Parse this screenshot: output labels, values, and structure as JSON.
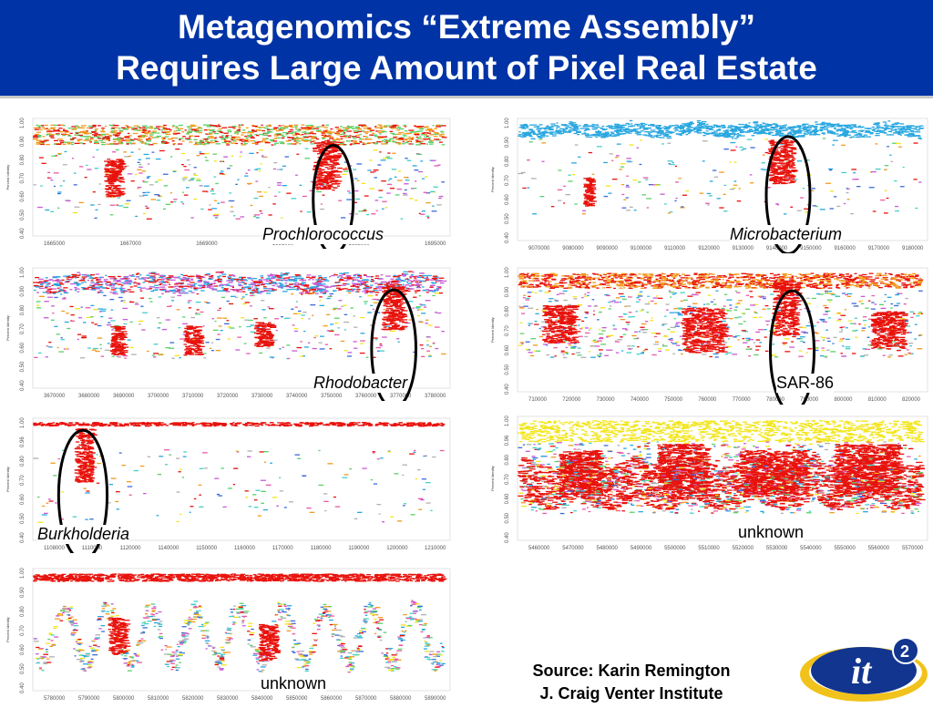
{
  "title": {
    "line1": "Metagenomics “Extreme Assembly”",
    "line2": "Requires Large Amount of Pixel Real Estate"
  },
  "colors": {
    "title_bg": "#0033a6",
    "highlight": "#e8120c",
    "oval": "#000000",
    "microbacterium_main": "#2aa7e0",
    "unknown_main": "#f2e51c"
  },
  "panels": [
    {
      "id": "prochlorococcus",
      "label": "Prochlorococcus",
      "italic": true,
      "y_axis_label": "Percent Identity",
      "yticks": [
        "1.00",
        "0.90",
        "0.80",
        "0.70",
        "0.60",
        "0.50",
        "0.40"
      ],
      "xticks": [
        "1665000",
        "1667000",
        "1669000",
        "1691000",
        "1693000",
        "1695000"
      ]
    },
    {
      "id": "microbacterium",
      "label": "Microbacterium",
      "italic": true,
      "y_axis_label": "Percent Identity",
      "yticks": [
        "1.00",
        "0.90",
        "0.80",
        "0.70",
        "0.60",
        "0.50",
        "0.40"
      ],
      "xticks": [
        "9070000",
        "9080000",
        "9090000",
        "9100000",
        "9110000",
        "9120000",
        "9130000",
        "9140000",
        "9150000",
        "9160000",
        "9170000",
        "9180000"
      ]
    },
    {
      "id": "rhodobacter",
      "label": "Rhodobacter",
      "italic": true,
      "y_axis_label": "Percent Identity",
      "yticks": [
        "1.00",
        "0.90",
        "0.80",
        "0.70",
        "0.60",
        "0.50",
        "0.40"
      ],
      "xticks": [
        "3670000",
        "3680000",
        "3690000",
        "3700000",
        "3710000",
        "3720000",
        "3730000",
        "3740000",
        "3750000",
        "3760000",
        "3770000",
        "3780000"
      ]
    },
    {
      "id": "sar86",
      "label": "SAR-86",
      "italic": false,
      "y_axis_label": "Percent Identity",
      "yticks": [
        "1.00",
        "0.90",
        "0.80",
        "0.70",
        "0.60",
        "0.50",
        "0.40"
      ],
      "xticks": [
        "710000",
        "720000",
        "730000",
        "740000",
        "750000",
        "760000",
        "770000",
        "780000",
        "790000",
        "800000",
        "810000",
        "820000"
      ]
    },
    {
      "id": "burkholderia",
      "label": "Burkholderia",
      "italic": true,
      "y_axis_label": "Percent Identity",
      "yticks": [
        "1.00",
        "0.96",
        "0.80",
        "0.70",
        "0.60",
        "0.50",
        "0.40"
      ],
      "xticks": [
        "1108000",
        "1110000",
        "1120000",
        "1140000",
        "1150000",
        "1160000",
        "1170000",
        "1180000",
        "1190000",
        "1200000",
        "1210000"
      ]
    },
    {
      "id": "unknown1",
      "label": "unknown",
      "italic": false,
      "y_axis_label": "Percent Identity",
      "yticks": [
        "1.00",
        "0.96",
        "0.80",
        "0.70",
        "0.60",
        "0.50",
        "0.40"
      ],
      "xticks": [
        "5460000",
        "5470000",
        "5480000",
        "5490000",
        "5500000",
        "5510000",
        "5520000",
        "5530000",
        "5540000",
        "5550000",
        "5560000",
        "5570000"
      ]
    },
    {
      "id": "unknown2",
      "label": "unknown",
      "italic": false,
      "y_axis_label": "Percent Identity",
      "yticks": [
        "1.00",
        "0.90",
        "0.80",
        "0.70",
        "0.60",
        "0.50",
        "0.40"
      ],
      "xticks": [
        "5780000",
        "5790000",
        "5800000",
        "5810000",
        "5820000",
        "5830000",
        "5840000",
        "5850000",
        "5860000",
        "5870000",
        "5880000",
        "5890000"
      ]
    }
  ],
  "source": {
    "line1": "Source: Karin Remington",
    "line2": "J. Craig Venter Institute"
  },
  "logo": {
    "text": "it",
    "superscript": "2"
  }
}
